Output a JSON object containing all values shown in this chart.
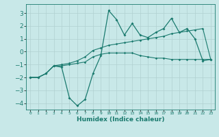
{
  "title": "",
  "xlabel": "Humidex (Indice chaleur)",
  "ylabel": "",
  "background_color": "#c8e8e8",
  "grid_color": "#b0d0d0",
  "line_color": "#1a7a6e",
  "x": [
    0,
    1,
    2,
    3,
    4,
    5,
    6,
    7,
    8,
    9,
    10,
    11,
    12,
    13,
    14,
    15,
    16,
    17,
    18,
    19,
    20,
    21,
    22,
    23
  ],
  "y_main": [
    -2.0,
    -2.0,
    -1.7,
    -1.1,
    -1.2,
    -3.6,
    -4.2,
    -3.7,
    -1.7,
    -0.3,
    3.2,
    2.5,
    1.3,
    2.2,
    1.3,
    1.1,
    1.5,
    1.8,
    2.6,
    1.5,
    1.8,
    1.0,
    -0.7,
    -0.6
  ],
  "y_line2": [
    -2.0,
    -2.0,
    -1.7,
    -1.1,
    -1.1,
    -1.0,
    -0.9,
    -0.8,
    -0.4,
    -0.2,
    -0.1,
    -0.1,
    -0.1,
    -0.1,
    -0.3,
    -0.4,
    -0.5,
    -0.5,
    -0.6,
    -0.6,
    -0.6,
    -0.6,
    -0.6,
    -0.6
  ],
  "y_line3": [
    -2.0,
    -2.0,
    -1.7,
    -1.1,
    -1.0,
    -0.9,
    -0.7,
    -0.4,
    0.1,
    0.3,
    0.5,
    0.6,
    0.7,
    0.8,
    0.9,
    1.0,
    1.1,
    1.2,
    1.4,
    1.5,
    1.6,
    1.7,
    1.8,
    -0.6
  ],
  "ylim": [
    -4.5,
    3.7
  ],
  "yticks": [
    -4,
    -3,
    -2,
    -1,
    0,
    1,
    2,
    3
  ],
  "xlim": [
    -0.5,
    23.5
  ],
  "figsize": [
    3.2,
    2.0
  ],
  "dpi": 100
}
